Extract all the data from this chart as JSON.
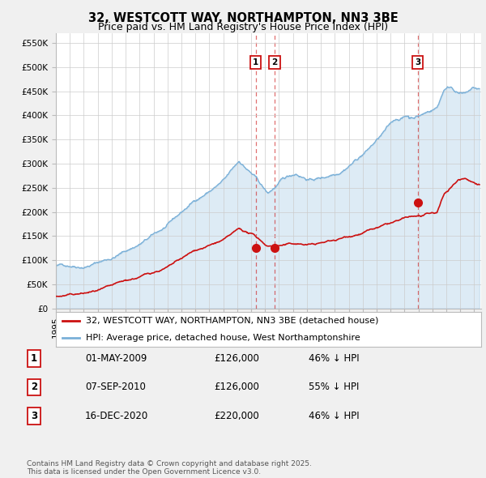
{
  "title": "32, WESTCOTT WAY, NORTHAMPTON, NN3 3BE",
  "subtitle": "Price paid vs. HM Land Registry's House Price Index (HPI)",
  "ylim": [
    0,
    570000
  ],
  "yticks": [
    0,
    50000,
    100000,
    150000,
    200000,
    250000,
    300000,
    350000,
    400000,
    450000,
    500000,
    550000
  ],
  "ytick_labels": [
    "£0",
    "£50K",
    "£100K",
    "£150K",
    "£200K",
    "£250K",
    "£300K",
    "£350K",
    "£400K",
    "£450K",
    "£500K",
    "£550K"
  ],
  "background_color": "#f0f0f0",
  "plot_bg_color": "#ffffff",
  "grid_color": "#cccccc",
  "hpi_color": "#7ab0d8",
  "hpi_fill_color": "#d0e8f8",
  "price_color": "#cc1111",
  "sale_dates_str": [
    "2009-05-01",
    "2010-09-07",
    "2020-12-16"
  ],
  "sale_prices": [
    126000,
    126000,
    220000
  ],
  "sale_labels": [
    "1",
    "2",
    "3"
  ],
  "transaction_table": [
    {
      "num": "1",
      "date": "01-MAY-2009",
      "price": "£126,000",
      "hpi": "46% ↓ HPI"
    },
    {
      "num": "2",
      "date": "07-SEP-2010",
      "price": "£126,000",
      "hpi": "55% ↓ HPI"
    },
    {
      "num": "3",
      "date": "16-DEC-2020",
      "price": "£220,000",
      "hpi": "46% ↓ HPI"
    }
  ],
  "legend_entries": [
    "32, WESTCOTT WAY, NORTHAMPTON, NN3 3BE (detached house)",
    "HPI: Average price, detached house, West Northamptonshire"
  ],
  "footer_text": "Contains HM Land Registry data © Crown copyright and database right 2025.\nThis data is licensed under the Open Government Licence v3.0.",
  "title_fontsize": 10.5,
  "subtitle_fontsize": 9,
  "tick_fontsize": 7.5,
  "legend_fontsize": 8,
  "table_fontsize": 8.5,
  "footer_fontsize": 6.5
}
